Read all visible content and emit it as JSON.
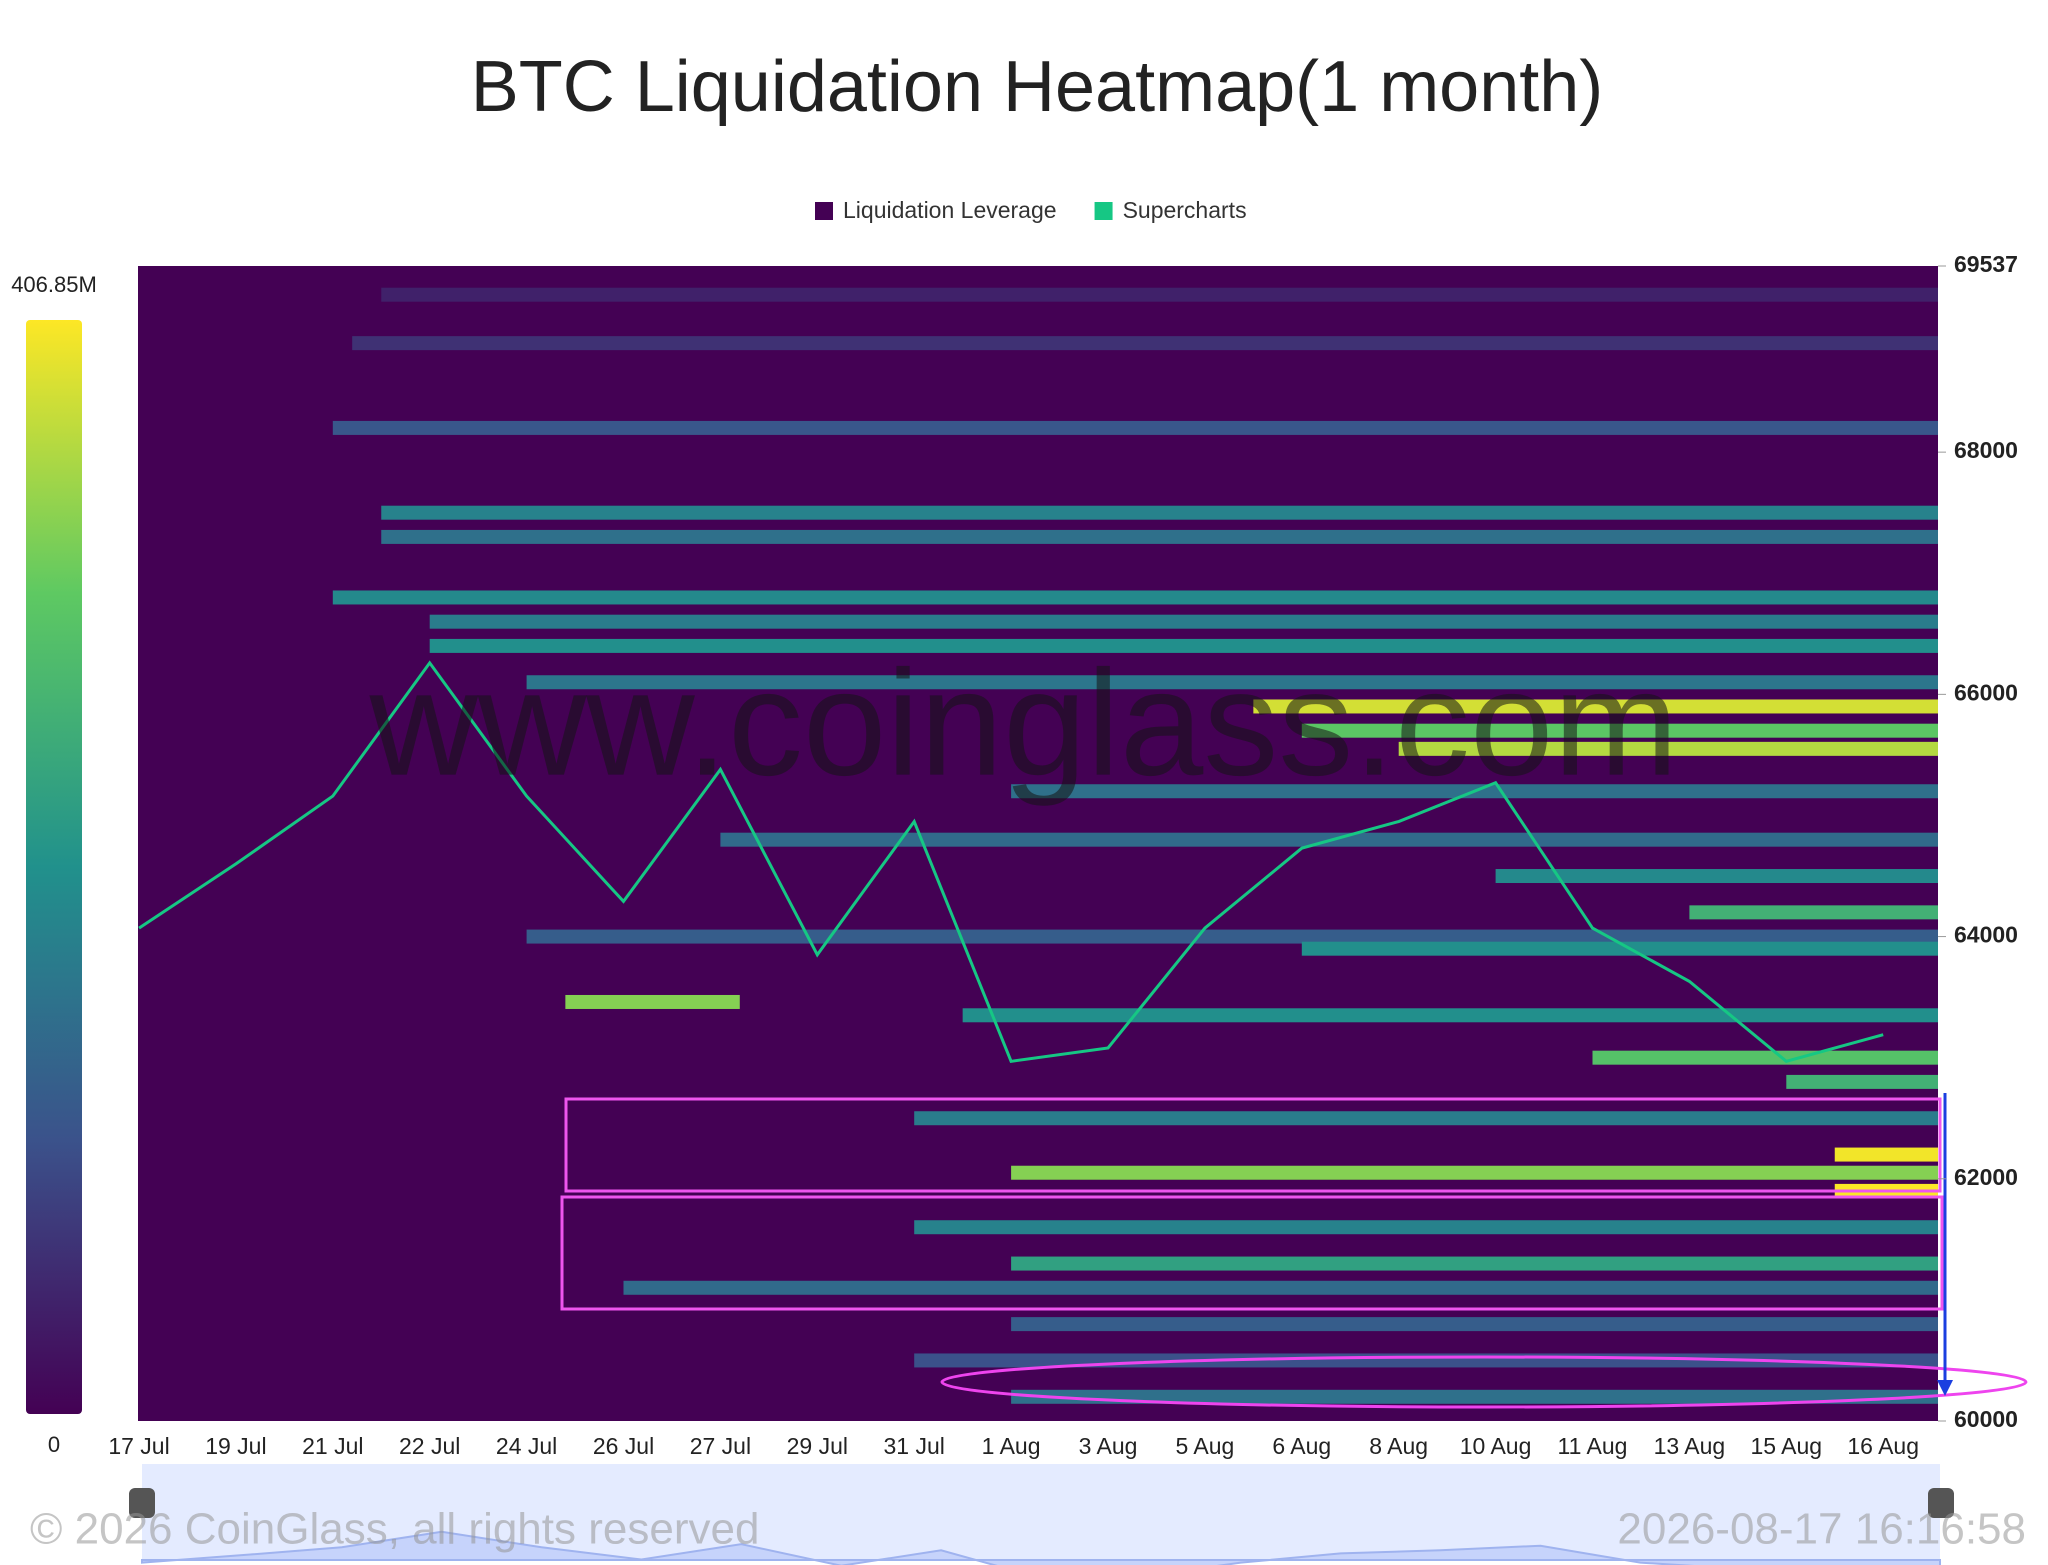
{
  "chart_data": {
    "type": "heatmap",
    "title": "BTC Liquidation Heatmap(1 month)",
    "watermark": "www.coinglass.com",
    "copyright": "© 2026 CoinGlass, all rights reserved",
    "timestamp": "2026-08-17 16:16:58",
    "categories": [
      "17 Jul",
      "19 Jul",
      "21 Jul",
      "22 Jul",
      "24 Jul",
      "26 Jul",
      "27 Jul",
      "29 Jul",
      "31 Jul",
      "1 Aug",
      "3 Aug",
      "5 Aug",
      "6 Aug",
      "8 Aug",
      "10 Aug",
      "11 Aug",
      "13 Aug",
      "15 Aug",
      "16 Aug"
    ],
    "ylim": [
      60000,
      69537
    ],
    "yticks": [
      60000,
      62000,
      64000,
      66000,
      68000,
      69537
    ],
    "clim": [
      0,
      406850000
    ],
    "cticks": [
      0,
      {
        "value": 406850000,
        "label": "406.85M"
      }
    ],
    "series": [
      {
        "name": "Liquidation Leverage",
        "color": "#440154",
        "levels": [
          {
            "price": 69300,
            "start": 2.5,
            "value": 40000000
          },
          {
            "price": 68900,
            "start": 2.2,
            "value": 60000000
          },
          {
            "price": 68200,
            "start": 2,
            "value": 110000000
          },
          {
            "price": 67500,
            "start": 2.5,
            "value": 180000000
          },
          {
            "price": 67300,
            "start": 2.5,
            "value": 150000000
          },
          {
            "price": 66800,
            "start": 2,
            "value": 190000000
          },
          {
            "price": 66600,
            "start": 3,
            "value": 170000000
          },
          {
            "price": 66400,
            "start": 3,
            "value": 200000000
          },
          {
            "price": 66100,
            "start": 4,
            "value": 160000000
          },
          {
            "price": 65900,
            "start": 11.5,
            "value": 380000000
          },
          {
            "price": 65700,
            "start": 12,
            "value": 300000000
          },
          {
            "price": 65550,
            "start": 13,
            "value": 360000000
          },
          {
            "price": 65200,
            "start": 9,
            "value": 150000000
          },
          {
            "price": 64800,
            "start": 6,
            "value": 140000000
          },
          {
            "price": 64500,
            "start": 14,
            "value": 190000000
          },
          {
            "price": 64200,
            "start": 16,
            "value": 260000000
          },
          {
            "price": 64000,
            "start": 4,
            "value": 120000000
          },
          {
            "price": 63900,
            "start": 12,
            "value": 200000000
          },
          {
            "price": 63460,
            "start": 4.4,
            "end": 6.2,
            "value": 330000000
          },
          {
            "price": 63350,
            "start": 8.5,
            "value": 200000000
          },
          {
            "price": 63000,
            "start": 15,
            "value": 290000000
          },
          {
            "price": 62800,
            "start": 17,
            "value": 260000000
          },
          {
            "price": 62500,
            "start": 8,
            "value": 170000000
          },
          {
            "price": 62200,
            "start": 17.5,
            "value": 400000000
          },
          {
            "price": 62050,
            "start": 9,
            "value": 330000000
          },
          {
            "price": 61900,
            "start": 17.5,
            "value": 406000000
          },
          {
            "price": 61600,
            "start": 8,
            "value": 180000000
          },
          {
            "price": 61300,
            "start": 9,
            "value": 230000000
          },
          {
            "price": 61100,
            "start": 5,
            "value": 140000000
          },
          {
            "price": 60800,
            "start": 9,
            "value": 120000000
          },
          {
            "price": 60500,
            "start": 8,
            "value": 100000000
          },
          {
            "price": 60200,
            "start": 9,
            "value": 150000000
          }
        ]
      },
      {
        "name": "Supercharts",
        "color": "#16c784",
        "values": [
          64070,
          64600,
          65160,
          66260,
          65160,
          64290,
          65380,
          63850,
          64950,
          62970,
          63080,
          64070,
          64730,
          64950,
          65270,
          64070,
          63630,
          62970,
          63190
        ]
      }
    ]
  }
}
